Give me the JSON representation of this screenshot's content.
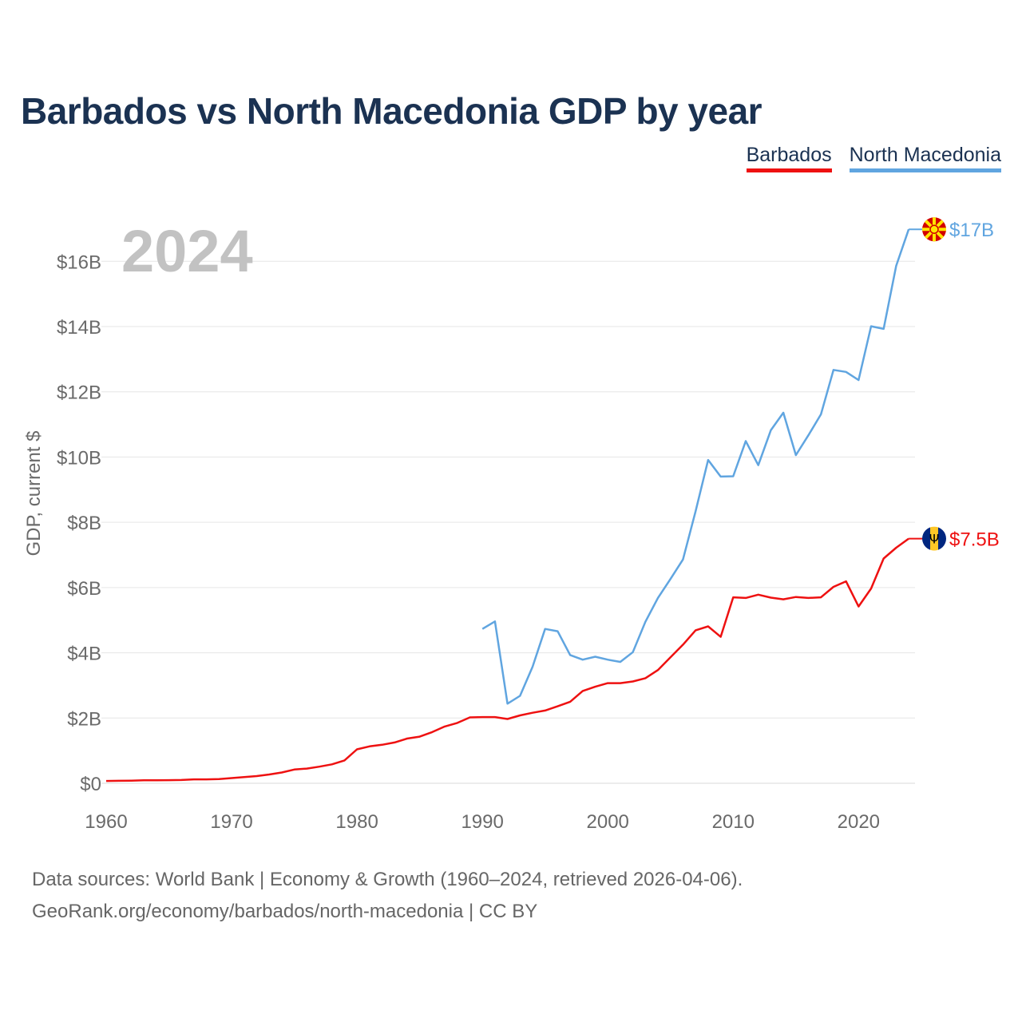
{
  "title": "Barbados vs North Macedonia GDP by year",
  "legend": [
    {
      "label": "Barbados",
      "color": "#ee1111"
    },
    {
      "label": "North Macedonia",
      "color": "#60a5e0"
    }
  ],
  "footer": {
    "line1": "Data sources: World Bank | Economy & Growth (1960–2024, retrieved 2026-04-06).",
    "line2": "GeoRank.org/economy/barbados/north-macedonia | CC BY"
  },
  "chart_data": {
    "type": "line",
    "title": "Barbados vs North Macedonia GDP by year",
    "xlabel": "",
    "ylabel": "GDP, current $",
    "year_watermark": "2024",
    "xlim": [
      1960,
      2024.5
    ],
    "ylim": [
      0,
      17.5
    ],
    "x_ticks": [
      1960,
      1970,
      1980,
      1990,
      2000,
      2010,
      2020
    ],
    "y_ticks": [
      0,
      2,
      4,
      6,
      8,
      10,
      12,
      14,
      16
    ],
    "y_tick_labels": [
      "$0",
      "$2B",
      "$4B",
      "$6B",
      "$8B",
      "$10B",
      "$12B",
      "$14B",
      "$16B"
    ],
    "grid": true,
    "legend_position": "top-right",
    "series": [
      {
        "name": "Barbados",
        "color": "#ee1111",
        "end_label": "$7.5B",
        "flag": "barbados-flag",
        "x": [
          1960,
          1961,
          1962,
          1963,
          1964,
          1965,
          1966,
          1967,
          1968,
          1969,
          1970,
          1971,
          1972,
          1973,
          1974,
          1975,
          1976,
          1977,
          1978,
          1979,
          1980,
          1981,
          1982,
          1983,
          1984,
          1985,
          1986,
          1987,
          1988,
          1989,
          1990,
          1991,
          1992,
          1993,
          1994,
          1995,
          1996,
          1997,
          1998,
          1999,
          2000,
          2001,
          2002,
          2003,
          2004,
          2005,
          2006,
          2007,
          2008,
          2009,
          2010,
          2011,
          2012,
          2013,
          2014,
          2015,
          2016,
          2017,
          2018,
          2019,
          2020,
          2021,
          2022,
          2023,
          2024
        ],
        "values": [
          0.07,
          0.075,
          0.08,
          0.09,
          0.09,
          0.095,
          0.1,
          0.12,
          0.12,
          0.13,
          0.16,
          0.19,
          0.22,
          0.27,
          0.33,
          0.42,
          0.45,
          0.51,
          0.58,
          0.7,
          1.04,
          1.13,
          1.18,
          1.25,
          1.37,
          1.43,
          1.57,
          1.74,
          1.85,
          2.02,
          2.03,
          2.03,
          1.97,
          2.08,
          2.16,
          2.23,
          2.36,
          2.5,
          2.83,
          2.96,
          3.07,
          3.07,
          3.12,
          3.22,
          3.47,
          3.86,
          4.25,
          4.69,
          4.81,
          4.49,
          5.7,
          5.68,
          5.78,
          5.69,
          5.64,
          5.71,
          5.68,
          5.7,
          6.02,
          6.19,
          5.42,
          5.97,
          6.89,
          7.22,
          7.5
        ]
      },
      {
        "name": "North Macedonia",
        "color": "#60a5e0",
        "end_label": "$17B",
        "flag": "north-macedonia-flag",
        "x": [
          1990,
          1991,
          1992,
          1993,
          1994,
          1995,
          1996,
          1997,
          1998,
          1999,
          2000,
          2001,
          2002,
          2003,
          2004,
          2005,
          2006,
          2007,
          2008,
          2009,
          2010,
          2011,
          2012,
          2013,
          2014,
          2015,
          2016,
          2017,
          2018,
          2019,
          2020,
          2021,
          2022,
          2023,
          2024
        ],
        "values": [
          4.73,
          4.96,
          2.44,
          2.68,
          3.57,
          4.73,
          4.66,
          3.93,
          3.79,
          3.88,
          3.79,
          3.72,
          4.02,
          4.95,
          5.68,
          6.26,
          6.86,
          8.34,
          9.91,
          9.4,
          9.41,
          10.49,
          9.75,
          10.82,
          11.36,
          10.06,
          10.67,
          11.31,
          12.67,
          12.61,
          12.36,
          14.01,
          13.93,
          15.86,
          16.98
        ]
      }
    ]
  }
}
